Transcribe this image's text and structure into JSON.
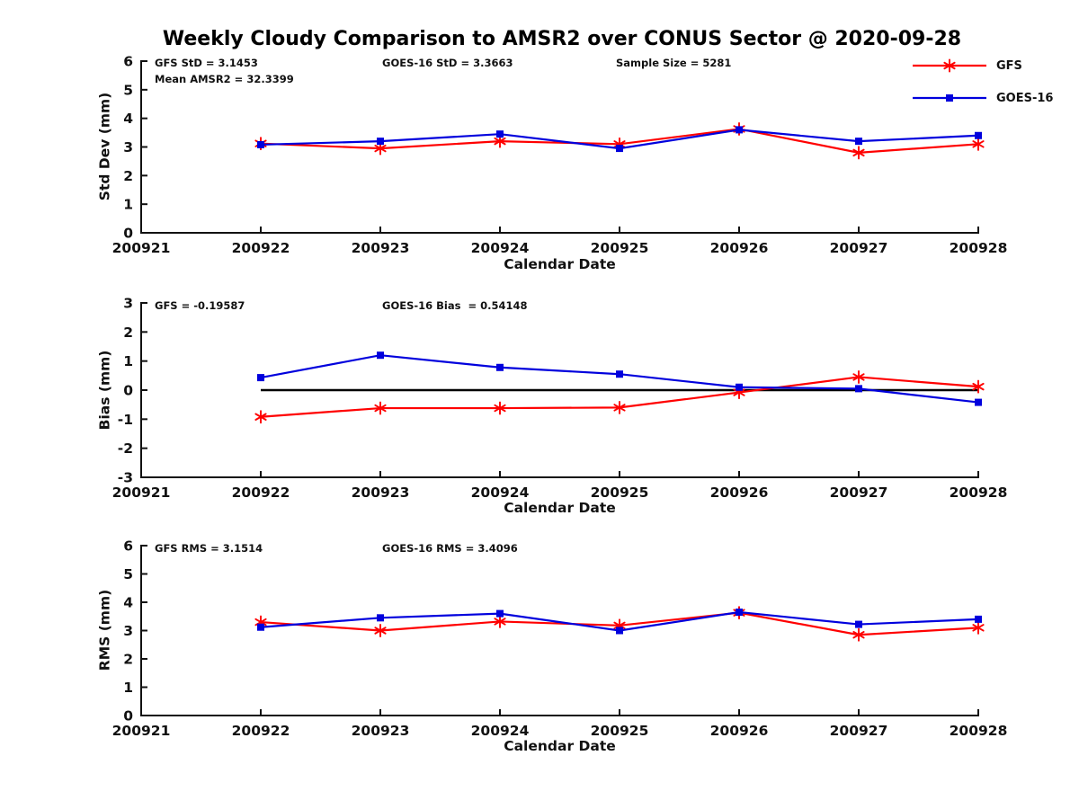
{
  "title": "Weekly Cloudy Comparison to AMSR2 over CONUS Sector @ 2020-09-28",
  "colors": {
    "gfs": "#ff0000",
    "goes16": "#0000dd",
    "axis": "#111111",
    "zero_line": "#000000",
    "background": "#ffffff"
  },
  "legend": {
    "position": "top-right",
    "items": [
      {
        "label": "GFS",
        "marker": "asterisk",
        "color_key": "gfs"
      },
      {
        "label": "GOES-16",
        "marker": "square",
        "color_key": "goes16"
      }
    ]
  },
  "chart_data": [
    {
      "type": "line",
      "id": "std-dev",
      "ylabel": "Std Dev (mm)",
      "xlabel": "Calendar Date",
      "ylim": [
        0,
        6
      ],
      "yticks": [
        0,
        1,
        2,
        3,
        4,
        5,
        6
      ],
      "grid": false,
      "categories": [
        "200921",
        "200922",
        "200923",
        "200924",
        "200925",
        "200926",
        "200927",
        "200928"
      ],
      "annotations": [
        {
          "text": "GFS StD = 3.1453",
          "col": 0,
          "row": 0
        },
        {
          "text": "GOES-16 StD = 3.3663",
          "col": 1,
          "row": 0
        },
        {
          "text": "Sample Size = 5281",
          "col": 2,
          "row": 0
        },
        {
          "text": "Mean AMSR2 = 32.3399",
          "col": 0,
          "row": 1
        }
      ],
      "zero_line": false,
      "series": [
        {
          "name": "GFS",
          "color_key": "gfs",
          "marker": "asterisk",
          "start_index": 1,
          "values": [
            3.12,
            2.95,
            3.2,
            3.1,
            3.63,
            2.8,
            3.1
          ]
        },
        {
          "name": "GOES-16",
          "color_key": "goes16",
          "marker": "square",
          "start_index": 1,
          "values": [
            3.08,
            3.2,
            3.45,
            2.95,
            3.6,
            3.2,
            3.4
          ]
        }
      ]
    },
    {
      "type": "line",
      "id": "bias",
      "ylabel": "Bias (mm)",
      "xlabel": "Calendar Date",
      "ylim": [
        -3,
        3
      ],
      "yticks": [
        3,
        2,
        1,
        0,
        -1,
        -2,
        -3
      ],
      "grid": false,
      "categories": [
        "200921",
        "200922",
        "200923",
        "200924",
        "200925",
        "200926",
        "200927",
        "200928"
      ],
      "annotations": [
        {
          "text": "GFS = -0.19587",
          "col": 0,
          "row": 0
        },
        {
          "text": "GOES-16 Bias  = 0.54148",
          "col": 1,
          "row": 0
        }
      ],
      "zero_line": true,
      "series": [
        {
          "name": "GFS",
          "color_key": "gfs",
          "marker": "asterisk",
          "start_index": 1,
          "values": [
            -0.92,
            -0.62,
            -0.62,
            -0.6,
            -0.08,
            0.45,
            0.12
          ]
        },
        {
          "name": "GOES-16",
          "color_key": "goes16",
          "marker": "square",
          "start_index": 1,
          "values": [
            0.43,
            1.2,
            0.78,
            0.55,
            0.1,
            0.05,
            -0.42
          ]
        }
      ]
    },
    {
      "type": "line",
      "id": "rms",
      "ylabel": "RMS (mm)",
      "xlabel": "Calendar Date",
      "ylim": [
        0,
        6
      ],
      "yticks": [
        0,
        1,
        2,
        3,
        4,
        5,
        6
      ],
      "grid": false,
      "categories": [
        "200921",
        "200922",
        "200923",
        "200924",
        "200925",
        "200926",
        "200927",
        "200928"
      ],
      "annotations": [
        {
          "text": "GFS RMS = 3.1514",
          "col": 0,
          "row": 0
        },
        {
          "text": "GOES-16 RMS = 3.4096",
          "col": 1,
          "row": 0
        }
      ],
      "zero_line": false,
      "series": [
        {
          "name": "GFS",
          "color_key": "gfs",
          "marker": "asterisk",
          "start_index": 1,
          "values": [
            3.3,
            3.0,
            3.32,
            3.18,
            3.63,
            2.85,
            3.1
          ]
        },
        {
          "name": "GOES-16",
          "color_key": "goes16",
          "marker": "square",
          "start_index": 1,
          "values": [
            3.12,
            3.45,
            3.6,
            3.0,
            3.65,
            3.22,
            3.4
          ]
        }
      ]
    }
  ]
}
